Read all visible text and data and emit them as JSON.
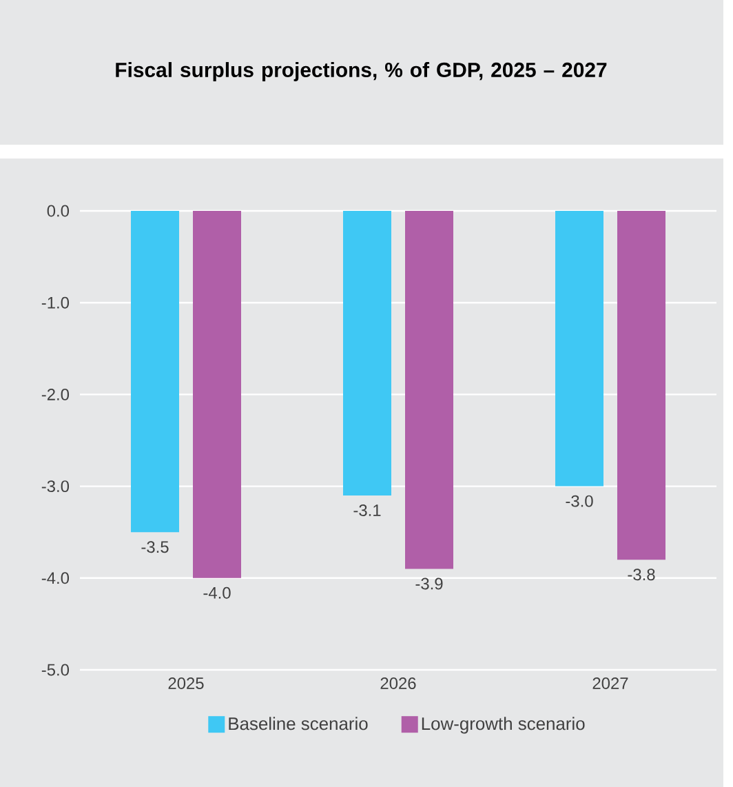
{
  "chart_data": {
    "type": "bar",
    "title": "Fiscal surplus projections, % of GDP, 2025 – 2027",
    "categories": [
      "2025",
      "2026",
      "2027"
    ],
    "series": [
      {
        "name": "Baseline scenario",
        "color": "#3fc8f4",
        "values": [
          -3.5,
          -3.1,
          -3.0
        ],
        "value_labels": [
          "-3.5",
          "-3.1",
          "-3.0"
        ]
      },
      {
        "name": "Low-growth scenario",
        "color": "#b05fa8",
        "values": [
          -4.0,
          -3.9,
          -3.8
        ],
        "value_labels": [
          "-4.0",
          "-3.9",
          "-3.8"
        ]
      }
    ],
    "ylim": [
      -5.0,
      0.0
    ],
    "yticks": [
      {
        "value": 0,
        "label": "0.0"
      },
      {
        "value": -1,
        "label": "-1.0"
      },
      {
        "value": -2,
        "label": "-2.0"
      },
      {
        "value": -3,
        "label": "-3.0"
      },
      {
        "value": -4,
        "label": "-4.0"
      },
      {
        "value": -5,
        "label": "-5.0"
      }
    ],
    "grid": "y",
    "legend": "bottom"
  }
}
